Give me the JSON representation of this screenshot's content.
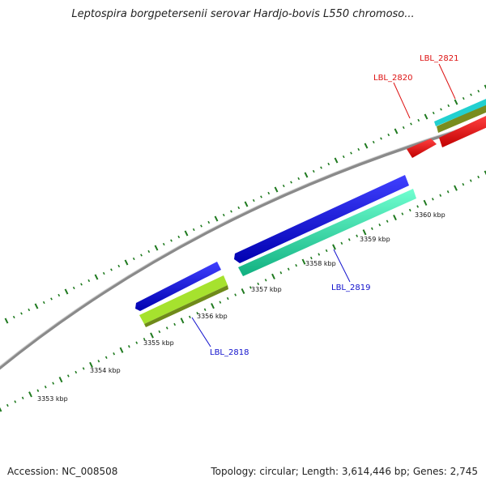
{
  "title": "Leptospira borgpetersenii serovar Hardjo-bovis L550 chromoso...",
  "footer": {
    "accession": "Accession: NC_008508",
    "summary": "Topology: circular; Length: 3,614,446 bp; Genes: 2,745"
  },
  "scale_labels": [
    "3353 kbp",
    "3354 kbp",
    "3355 kbp",
    "3356 kbp",
    "3357 kbp",
    "3358 kbp",
    "3359 kbp",
    "3360 kbp"
  ],
  "gene_labels": [
    "LBL_2818",
    "LBL_2819",
    "LBL_2820",
    "LBL_2821"
  ],
  "colors": {
    "backbone": "#8a8a8a",
    "tick": "#1f7a1f",
    "forward_cds": "#1a1adf",
    "reverse_cds": "#2ef0b0",
    "light_green": "#a6e22e",
    "olive": "#7a8c1e",
    "red": "#ee1111",
    "cyan": "#22d0d0",
    "label_blue": "#1010cc",
    "label_red": "#dd1111"
  }
}
